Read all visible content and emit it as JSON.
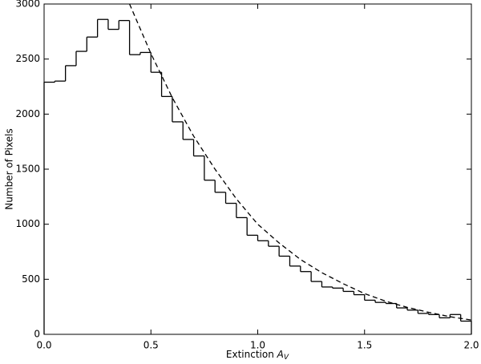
{
  "chart_data": {
    "type": "histogram",
    "bins": [
      0,
      0.05,
      0.1,
      0.15,
      0.2,
      0.25,
      0.3,
      0.35,
      0.4,
      0.45,
      0.5,
      0.55,
      0.6,
      0.65,
      0.7,
      0.75,
      0.8,
      0.85,
      0.9,
      0.95,
      1.0,
      1.05,
      1.1,
      1.15,
      1.2,
      1.25,
      1.3,
      1.35,
      1.4,
      1.45,
      1.5,
      1.55,
      1.6,
      1.65,
      1.7,
      1.75,
      1.8,
      1.85,
      1.9,
      1.95,
      2.0
    ],
    "values": [
      2290,
      2300,
      2440,
      2570,
      2700,
      2860,
      2770,
      2850,
      2540,
      2560,
      2380,
      2160,
      1930,
      1770,
      1620,
      1400,
      1290,
      1190,
      1060,
      900,
      850,
      800,
      710,
      620,
      570,
      480,
      430,
      420,
      390,
      360,
      310,
      290,
      280,
      240,
      220,
      190,
      180,
      150,
      180,
      120
    ],
    "color": "#000000",
    "fit": {
      "x": [
        0.4,
        0.5,
        0.6,
        0.7,
        0.8,
        0.9,
        1.0,
        1.1,
        1.2,
        1.3,
        1.4,
        1.5,
        1.6,
        1.7,
        1.8,
        1.9,
        2.0
      ],
      "values": [
        3000,
        2550,
        2150,
        1800,
        1500,
        1230,
        1000,
        830,
        680,
        560,
        460,
        370,
        300,
        245,
        200,
        160,
        130
      ],
      "color": "#000000",
      "dashed": true
    },
    "xlabel": {
      "text": "Extinction",
      "symbol": "A",
      "subscript": "V"
    },
    "ylabel": "Number of Pixels",
    "xlim": [
      0,
      2.0
    ],
    "ylim": [
      0,
      3000
    ],
    "xticks": [
      {
        "value": 0,
        "label": "0.0"
      },
      0.5,
      {
        "value": 1.0,
        "label": "1.0"
      },
      1.5,
      {
        "value": 2.0,
        "label": "2.0"
      }
    ],
    "yticks": [
      0,
      500,
      1000,
      1500,
      2000,
      2500,
      3000
    ],
    "grid": false
  }
}
